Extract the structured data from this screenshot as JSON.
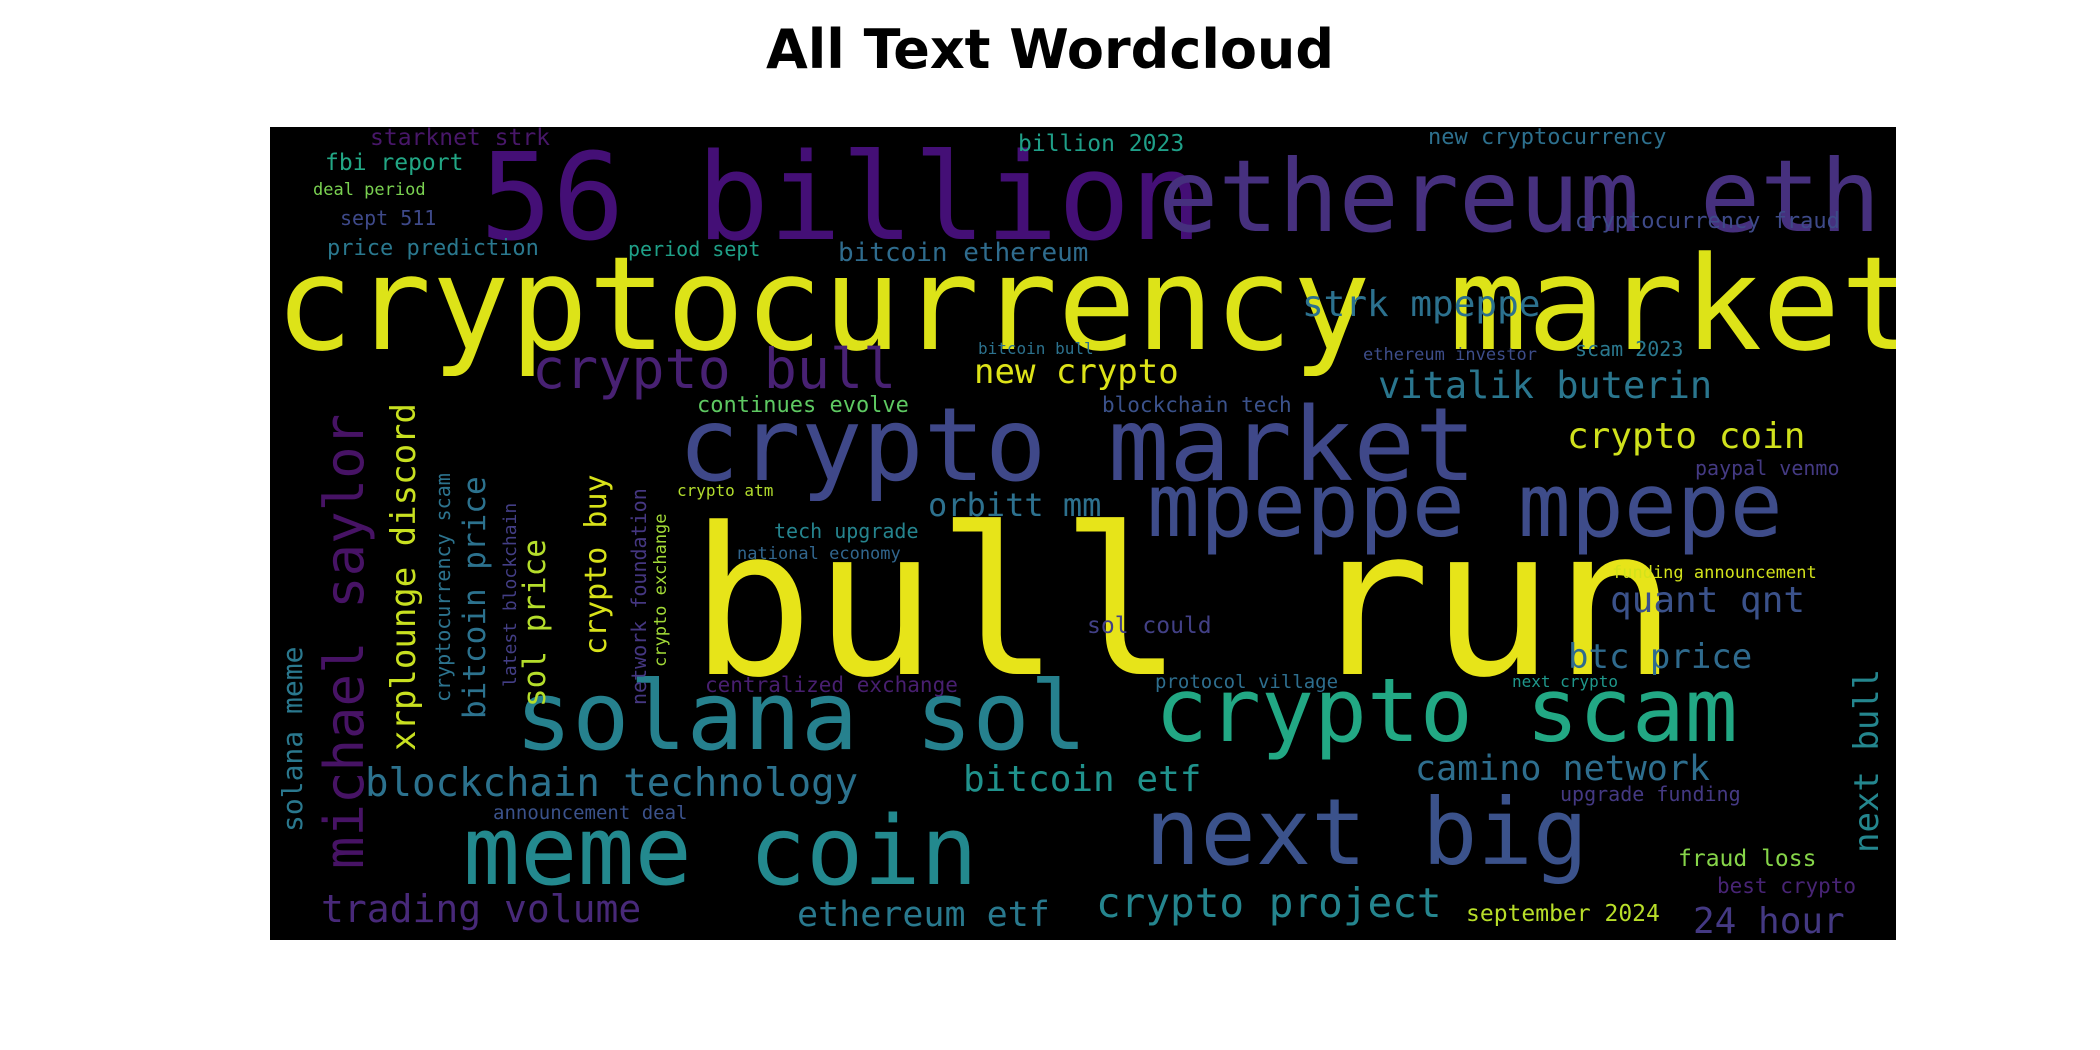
{
  "title": "All Text Wordcloud",
  "words": [
    {
      "text": "bull run",
      "color": "#e7e419"
    },
    {
      "text": "cryptocurrency market",
      "color": "#dde318"
    },
    {
      "text": "56 billion",
      "color": "#440f76"
    },
    {
      "text": "ethereum eth",
      "color": "#46307e"
    },
    {
      "text": "crypto market",
      "color": "#3f4889"
    },
    {
      "text": "mpeppe mpepe",
      "color": "#3e4c8a"
    },
    {
      "text": "solana sol",
      "color": "#26818e"
    },
    {
      "text": "crypto scam",
      "color": "#22a884"
    },
    {
      "text": "meme coin",
      "color": "#23898e"
    },
    {
      "text": "next big",
      "color": "#3b528b"
    },
    {
      "text": "michael saylor",
      "color": "#471365"
    },
    {
      "text": "crypto bull",
      "color": "#482173"
    },
    {
      "text": "xrplounge discord",
      "color": "#c8e020"
    },
    {
      "text": "blockchain technology",
      "color": "#2c728e"
    },
    {
      "text": "crypto project",
      "color": "#25858e"
    },
    {
      "text": "strk mpeppe",
      "color": "#2c718e"
    },
    {
      "text": "vitalik buterin",
      "color": "#2a768e"
    },
    {
      "text": "crypto coin",
      "color": "#d0e11c"
    },
    {
      "text": "camino network",
      "color": "#2e6e8e"
    },
    {
      "text": "bitcoin etf",
      "color": "#20928c"
    },
    {
      "text": "trading volume",
      "color": "#482979"
    },
    {
      "text": "ethereum etf",
      "color": "#29798e"
    },
    {
      "text": "new crypto",
      "color": "#dde318"
    },
    {
      "text": "orbitt mm",
      "color": "#2d718e"
    },
    {
      "text": "quant qnt",
      "color": "#3b528b"
    },
    {
      "text": "btc price",
      "color": "#2f6b8e"
    },
    {
      "text": "next bull",
      "color": "#24868e"
    },
    {
      "text": "24 hour",
      "color": "#443983"
    },
    {
      "text": "bitcoin price",
      "color": "#2c728e"
    },
    {
      "text": "sol price",
      "color": "#b5de2b"
    },
    {
      "text": "crypto buy",
      "color": "#d8e219"
    },
    {
      "text": "solana meme",
      "color": "#2a788e"
    },
    {
      "text": "bitcoin ethereum",
      "color": "#2f6c8e"
    },
    {
      "text": "september 2024",
      "color": "#b8de29"
    },
    {
      "text": "fraud loss",
      "color": "#86d549"
    },
    {
      "text": "price prediction",
      "color": "#2a788e"
    },
    {
      "text": "fbi report",
      "color": "#22a785"
    },
    {
      "text": "starknet strk",
      "color": "#481769"
    },
    {
      "text": "billion 2023",
      "color": "#1f9f88"
    },
    {
      "text": "new cryptocurrency",
      "color": "#2d708e"
    },
    {
      "text": "cryptocurrency fraud",
      "color": "#3e4a89"
    },
    {
      "text": "deal period",
      "color": "#7ad151"
    },
    {
      "text": "sept 511",
      "color": "#3e4989"
    },
    {
      "text": "period sept",
      "color": "#1fa088"
    },
    {
      "text": "continues evolve",
      "color": "#5ec962"
    },
    {
      "text": "blockchain tech",
      "color": "#3b528b"
    },
    {
      "text": "scam 2023",
      "color": "#2a788e"
    },
    {
      "text": "ethereum investor",
      "color": "#3d4d8a"
    },
    {
      "text": "bitcoin bull",
      "color": "#2c728e"
    },
    {
      "text": "paypal venmo",
      "color": "#443a83"
    },
    {
      "text": "crypto atm",
      "color": "#b2dd2d"
    },
    {
      "text": "tech upgrade",
      "color": "#25848e"
    },
    {
      "text": "national economy",
      "color": "#31668e"
    },
    {
      "text": "funding announcement",
      "color": "#d2e21b"
    },
    {
      "text": "sol could",
      "color": "#424086"
    },
    {
      "text": "protocol village",
      "color": "#2e6e8e"
    },
    {
      "text": "next crypto",
      "color": "#1f978b"
    },
    {
      "text": "centralized exchange",
      "color": "#481f70"
    },
    {
      "text": "announcement deal",
      "color": "#3b528b"
    },
    {
      "text": "upgrade funding",
      "color": "#443983"
    },
    {
      "text": "best crypto",
      "color": "#482475"
    },
    {
      "text": "cryptocurrency scam",
      "color": "#2c738e"
    },
    {
      "text": "latest blockchain",
      "color": "#433e85"
    },
    {
      "text": "network foundation",
      "color": "#453781"
    },
    {
      "text": "crypto exchange",
      "color": "#a2da37"
    }
  ]
}
